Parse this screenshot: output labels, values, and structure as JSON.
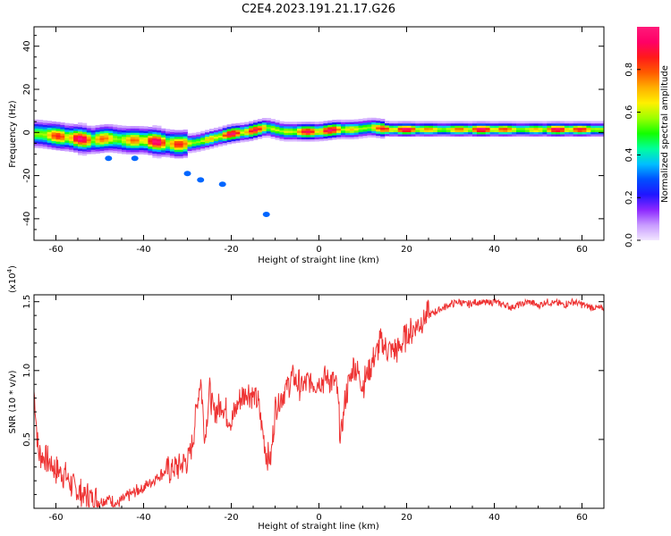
{
  "title": "C2E4.2023.191.21.17.G26",
  "chart_data": [
    {
      "type": "heatmap",
      "xlabel": "Height of straight line (km)",
      "ylabel": "Frequency (Hz)",
      "xlim": [
        -65,
        65
      ],
      "ylim": [
        -50,
        49
      ],
      "xticks": [
        -60,
        -40,
        -20,
        0,
        20,
        40,
        60
      ],
      "yticks": [
        -40,
        -20,
        0,
        20,
        40
      ],
      "colorbar": {
        "label": "Normalized spectral amplitude",
        "range": [
          0,
          1
        ],
        "ticks": [
          "0.0",
          "0.2",
          "0.4",
          "0.6",
          "0.8"
        ],
        "colors": [
          "#f2e6ff",
          "#c89bff",
          "#8c28ff",
          "#1f16ff",
          "#0050ff",
          "#00bfff",
          "#00ff9d",
          "#12ff00",
          "#9bff00",
          "#fff000",
          "#ffb000",
          "#ff5a00",
          "#ff1a1a",
          "#ff0066",
          "#ff1a7a"
        ]
      },
      "ridge": {
        "x": [
          -64,
          -60,
          -56,
          -52,
          -48,
          -44,
          -40,
          -36,
          -32,
          -28,
          -24,
          -20,
          -16,
          -12,
          -8,
          -4,
          0,
          4,
          8,
          12,
          16,
          20,
          30,
          40,
          50,
          60,
          65
        ],
        "freq": [
          -1,
          -2,
          -3,
          -4,
          -3,
          -4,
          -4,
          -5,
          -6,
          -5,
          -3,
          -1,
          0,
          2,
          0,
          0,
          0,
          1,
          1,
          2,
          1,
          1,
          1,
          1,
          1,
          1,
          1
        ]
      },
      "stray_components": [
        {
          "x": -48,
          "freq": -12
        },
        {
          "x": -42,
          "freq": -12
        },
        {
          "x": -30,
          "freq": -19
        },
        {
          "x": -27,
          "freq": -22
        },
        {
          "x": -22,
          "freq": -24
        },
        {
          "x": -12,
          "freq": -38
        }
      ]
    },
    {
      "type": "line",
      "xlabel": "Height of straight line (km)",
      "ylabel": "SNR (10 * v/v)",
      "yscale_label": "(x10",
      "yscale_exp": "4",
      "xlim": [
        -65,
        65
      ],
      "ylim": [
        0,
        1.55
      ],
      "xticks": [
        -60,
        -40,
        -20,
        0,
        20,
        40,
        60
      ],
      "yticks": [
        "0.5",
        "1.0",
        "1.5"
      ],
      "ytick_values": [
        0.5,
        1.0,
        1.5
      ],
      "color": "#ee3333",
      "x": [
        -65,
        -64,
        -62,
        -60,
        -58,
        -56,
        -54,
        -52,
        -50,
        -48,
        -46,
        -44,
        -42,
        -40,
        -38,
        -36,
        -34,
        -32,
        -30,
        -29,
        -28,
        -27,
        -26,
        -25,
        -24,
        -22,
        -20,
        -18,
        -16,
        -14,
        -12,
        -11,
        -10,
        -8,
        -6,
        -4,
        -2,
        0,
        2,
        4,
        5,
        6,
        8,
        10,
        12,
        14,
        16,
        18,
        20,
        22,
        24,
        26,
        28,
        30,
        32,
        34,
        36,
        38,
        40,
        42,
        44,
        46,
        48,
        50,
        52,
        54,
        56,
        58,
        60,
        62,
        64,
        65
      ],
      "y": [
        0.85,
        0.4,
        0.35,
        0.28,
        0.25,
        0.15,
        0.1,
        0.08,
        0.05,
        0.07,
        0.03,
        0.08,
        0.12,
        0.15,
        0.2,
        0.25,
        0.28,
        0.3,
        0.35,
        0.45,
        0.7,
        0.95,
        0.5,
        0.85,
        0.7,
        0.75,
        0.62,
        0.8,
        0.85,
        0.78,
        0.4,
        0.35,
        0.72,
        0.85,
        0.95,
        0.88,
        0.92,
        0.92,
        0.95,
        0.9,
        0.5,
        0.8,
        1.05,
        0.9,
        1.05,
        1.2,
        1.15,
        1.15,
        1.25,
        1.32,
        1.38,
        1.42,
        1.45,
        1.48,
        1.5,
        1.48,
        1.5,
        1.49,
        1.5,
        1.48,
        1.46,
        1.48,
        1.5,
        1.47,
        1.5,
        1.49,
        1.48,
        1.5,
        1.48,
        1.46,
        1.45,
        1.45
      ]
    }
  ]
}
